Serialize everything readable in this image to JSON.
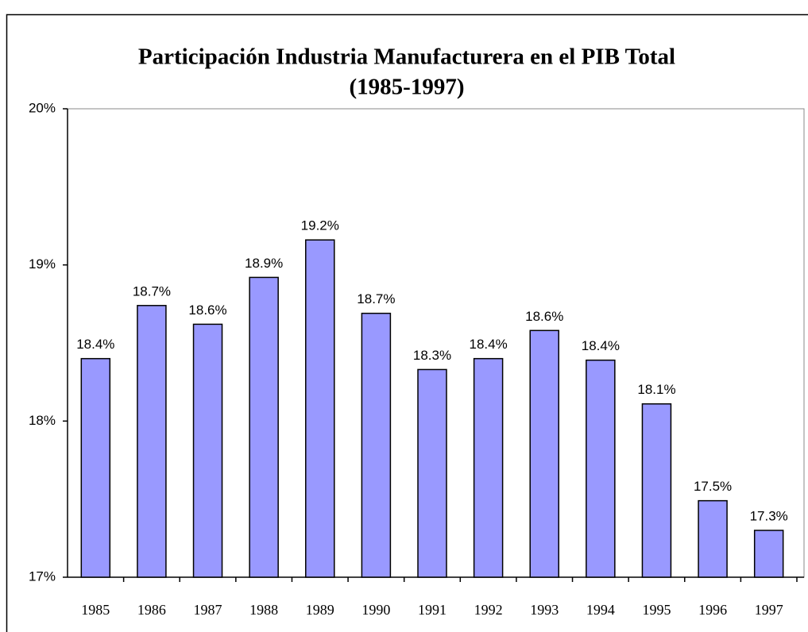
{
  "chart_data": {
    "type": "bar",
    "title": "Participación Industria Manufacturera en el PIB Total",
    "subtitle": "(1985-1997)",
    "categories": [
      "1985",
      "1986",
      "1987",
      "1988",
      "1989",
      "1990",
      "1991",
      "1992",
      "1993",
      "1994",
      "1995",
      "1996",
      "1997"
    ],
    "values": [
      18.4,
      18.74,
      18.62,
      18.92,
      19.16,
      18.69,
      18.33,
      18.4,
      18.58,
      18.39,
      18.11,
      17.49,
      17.3
    ],
    "value_labels": [
      "18.4%",
      "18.7%",
      "18.6%",
      "18.9%",
      "19.2%",
      "18.7%",
      "18.3%",
      "18.4%",
      "18.6%",
      "18.4%",
      "18.1%",
      "17.5%",
      "17.3%"
    ],
    "color": "#9999ff",
    "ylim": [
      17,
      20
    ],
    "yticks": [
      {
        "value": 17,
        "label": "17%"
      },
      {
        "value": 18,
        "label": "18%"
      },
      {
        "value": 19,
        "label": "19%"
      },
      {
        "value": 20,
        "label": "20%"
      }
    ],
    "grid": false
  }
}
